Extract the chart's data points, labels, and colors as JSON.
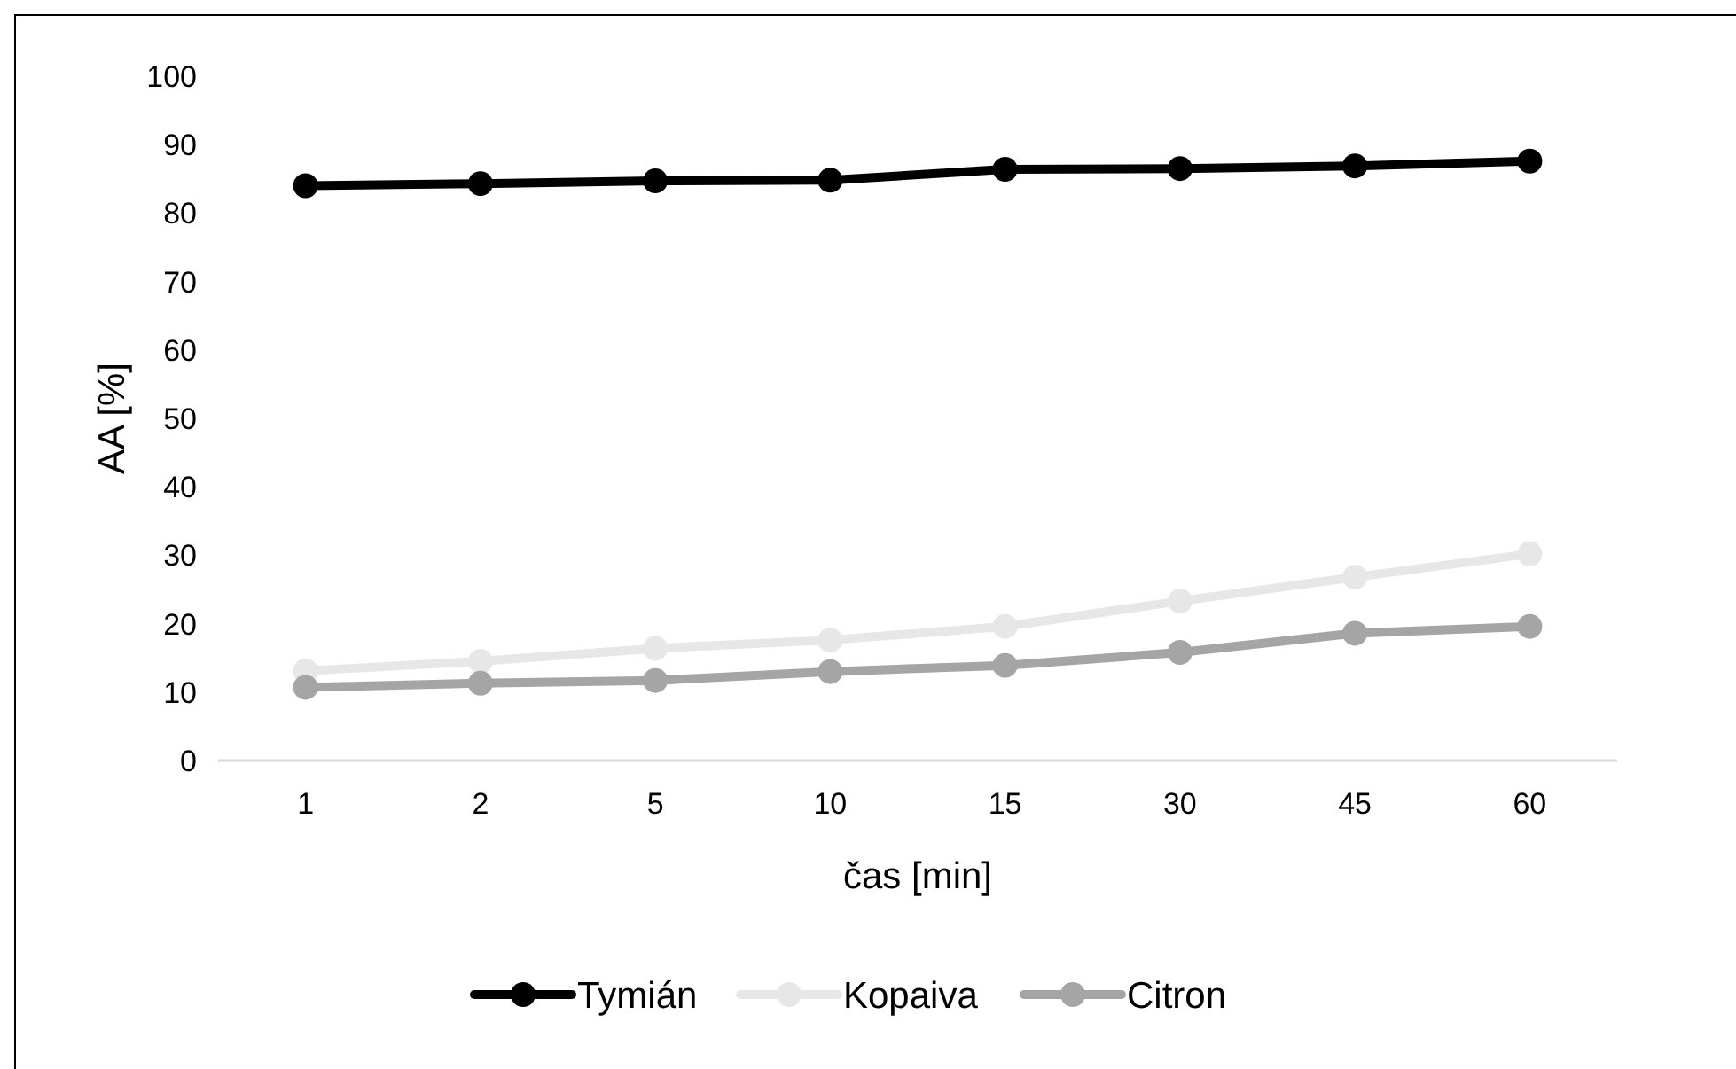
{
  "chart_data": {
    "type": "line",
    "xlabel": "čas [min]",
    "ylabel": "AA [%]",
    "categories": [
      "1",
      "2",
      "5",
      "10",
      "15",
      "30",
      "45",
      "60"
    ],
    "series": [
      {
        "name": "Tymián",
        "color": "#000000",
        "values": [
          84.0,
          84.3,
          84.7,
          84.8,
          86.4,
          86.5,
          86.9,
          87.6
        ]
      },
      {
        "name": "Kopaiva",
        "color": "#e7e7e7",
        "values": [
          13.1,
          14.5,
          16.4,
          17.6,
          19.6,
          23.3,
          26.8,
          30.2
        ]
      },
      {
        "name": "Citron",
        "color": "#a5a5a5",
        "values": [
          10.7,
          11.3,
          11.7,
          13.0,
          13.9,
          15.8,
          18.6,
          19.6
        ]
      }
    ],
    "ylim": [
      0,
      100
    ],
    "yticks": [
      0,
      10,
      20,
      30,
      40,
      50,
      60,
      70,
      80,
      90,
      100
    ],
    "grid": false,
    "legend": "bottom",
    "marker": "circle",
    "line_style": "solid"
  }
}
